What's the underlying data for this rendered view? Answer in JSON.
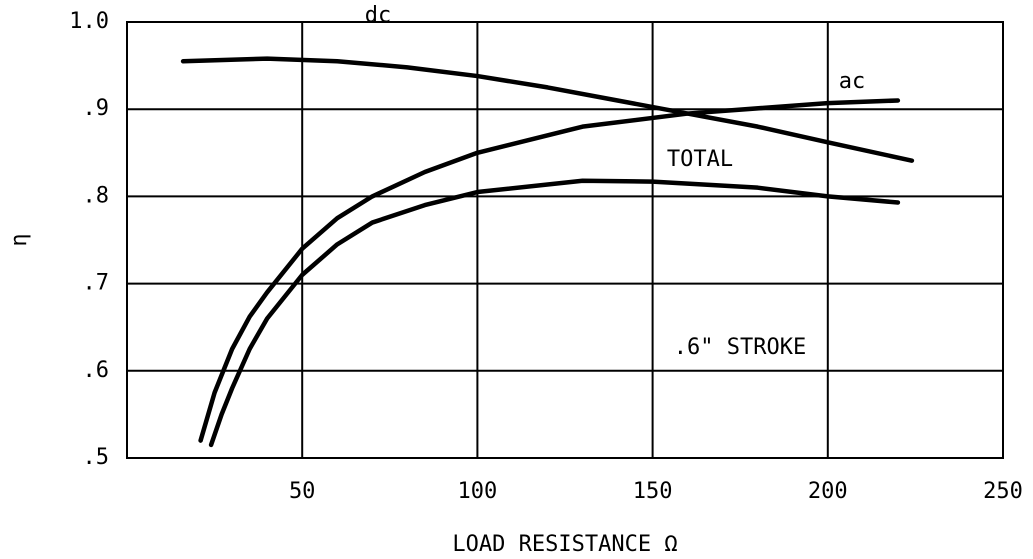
{
  "chart_data": {
    "type": "line",
    "xlabel": "LOAD RESISTANCE Ω",
    "ylabel": "η",
    "annotations": [
      ".6\" STROKE"
    ],
    "xlim": [
      0,
      250
    ],
    "xticks": [
      50,
      100,
      150,
      200,
      250
    ],
    "ylim": [
      0.5,
      1.0
    ],
    "yticks": [
      {
        "value": 0.5,
        "label": ".5"
      },
      {
        "value": 0.6,
        "label": ".6"
      },
      {
        "value": 0.7,
        "label": ".7"
      },
      {
        "value": 0.8,
        "label": ".8"
      },
      {
        "value": 0.9,
        "label": ".9"
      },
      {
        "value": 1.0,
        "label": "1.0"
      }
    ],
    "grid": true,
    "series": [
      {
        "name": "dc",
        "color": "#000000",
        "x": [
          16,
          40,
          60,
          80,
          100,
          120,
          140,
          160,
          180,
          200,
          224
        ],
        "values": [
          0.955,
          0.958,
          0.955,
          0.948,
          0.938,
          0.925,
          0.91,
          0.895,
          0.88,
          0.862,
          0.841
        ]
      },
      {
        "name": "ac",
        "color": "#000000",
        "x": [
          21,
          25,
          30,
          35,
          40,
          50,
          60,
          70,
          85,
          100,
          130,
          160,
          200,
          220
        ],
        "values": [
          0.52,
          0.575,
          0.625,
          0.662,
          0.69,
          0.74,
          0.775,
          0.8,
          0.828,
          0.85,
          0.88,
          0.895,
          0.907,
          0.91
        ]
      },
      {
        "name": "TOTAL",
        "color": "#000000",
        "x": [
          24,
          27,
          30,
          35,
          40,
          50,
          60,
          70,
          85,
          100,
          130,
          150,
          180,
          200,
          220
        ],
        "values": [
          0.515,
          0.55,
          0.58,
          0.625,
          0.66,
          0.71,
          0.745,
          0.77,
          0.79,
          0.805,
          0.818,
          0.817,
          0.81,
          0.8,
          0.793
        ]
      }
    ]
  }
}
